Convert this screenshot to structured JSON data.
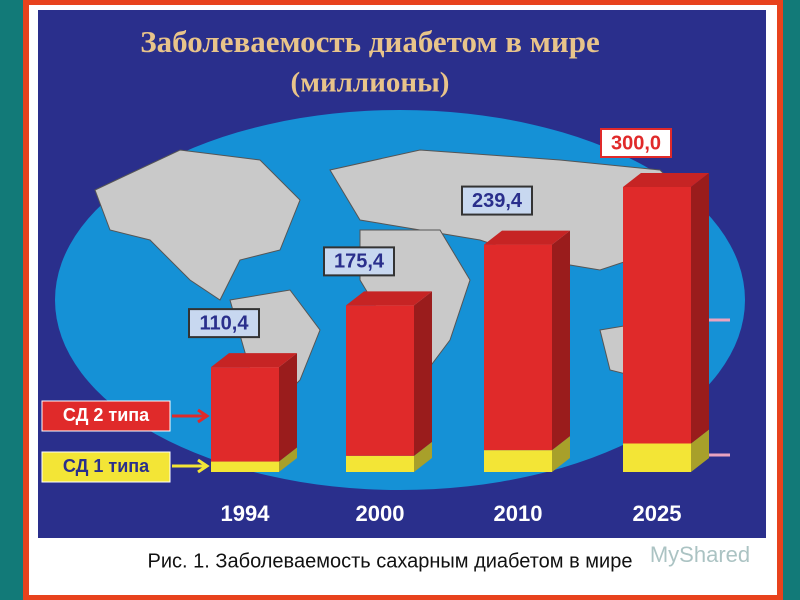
{
  "chart_data": {
    "type": "bar3d-stacked",
    "title": "Заболеваемость диабетом в мире",
    "subtitle": "(миллионы)",
    "caption": "Рис. 1. Заболеваемость сахарным диабетом в мире",
    "watermark": "MyShared",
    "categories": [
      "1994",
      "2000",
      "2010",
      "2025"
    ],
    "series": [
      {
        "name": "СД 1 типа",
        "color": "#f3e536",
        "values": [
          11,
          17,
          23,
          30
        ]
      },
      {
        "name": "СД 2 типа",
        "color": "#e02a2a",
        "values": [
          99.4,
          158.4,
          216.4,
          270.0
        ]
      }
    ],
    "totals": {
      "values": [
        110.4,
        175.4,
        239.4,
        300.0
      ],
      "value_labels": [
        "110,4",
        "175,4",
        "239,4",
        "300,0"
      ]
    }
  }
}
